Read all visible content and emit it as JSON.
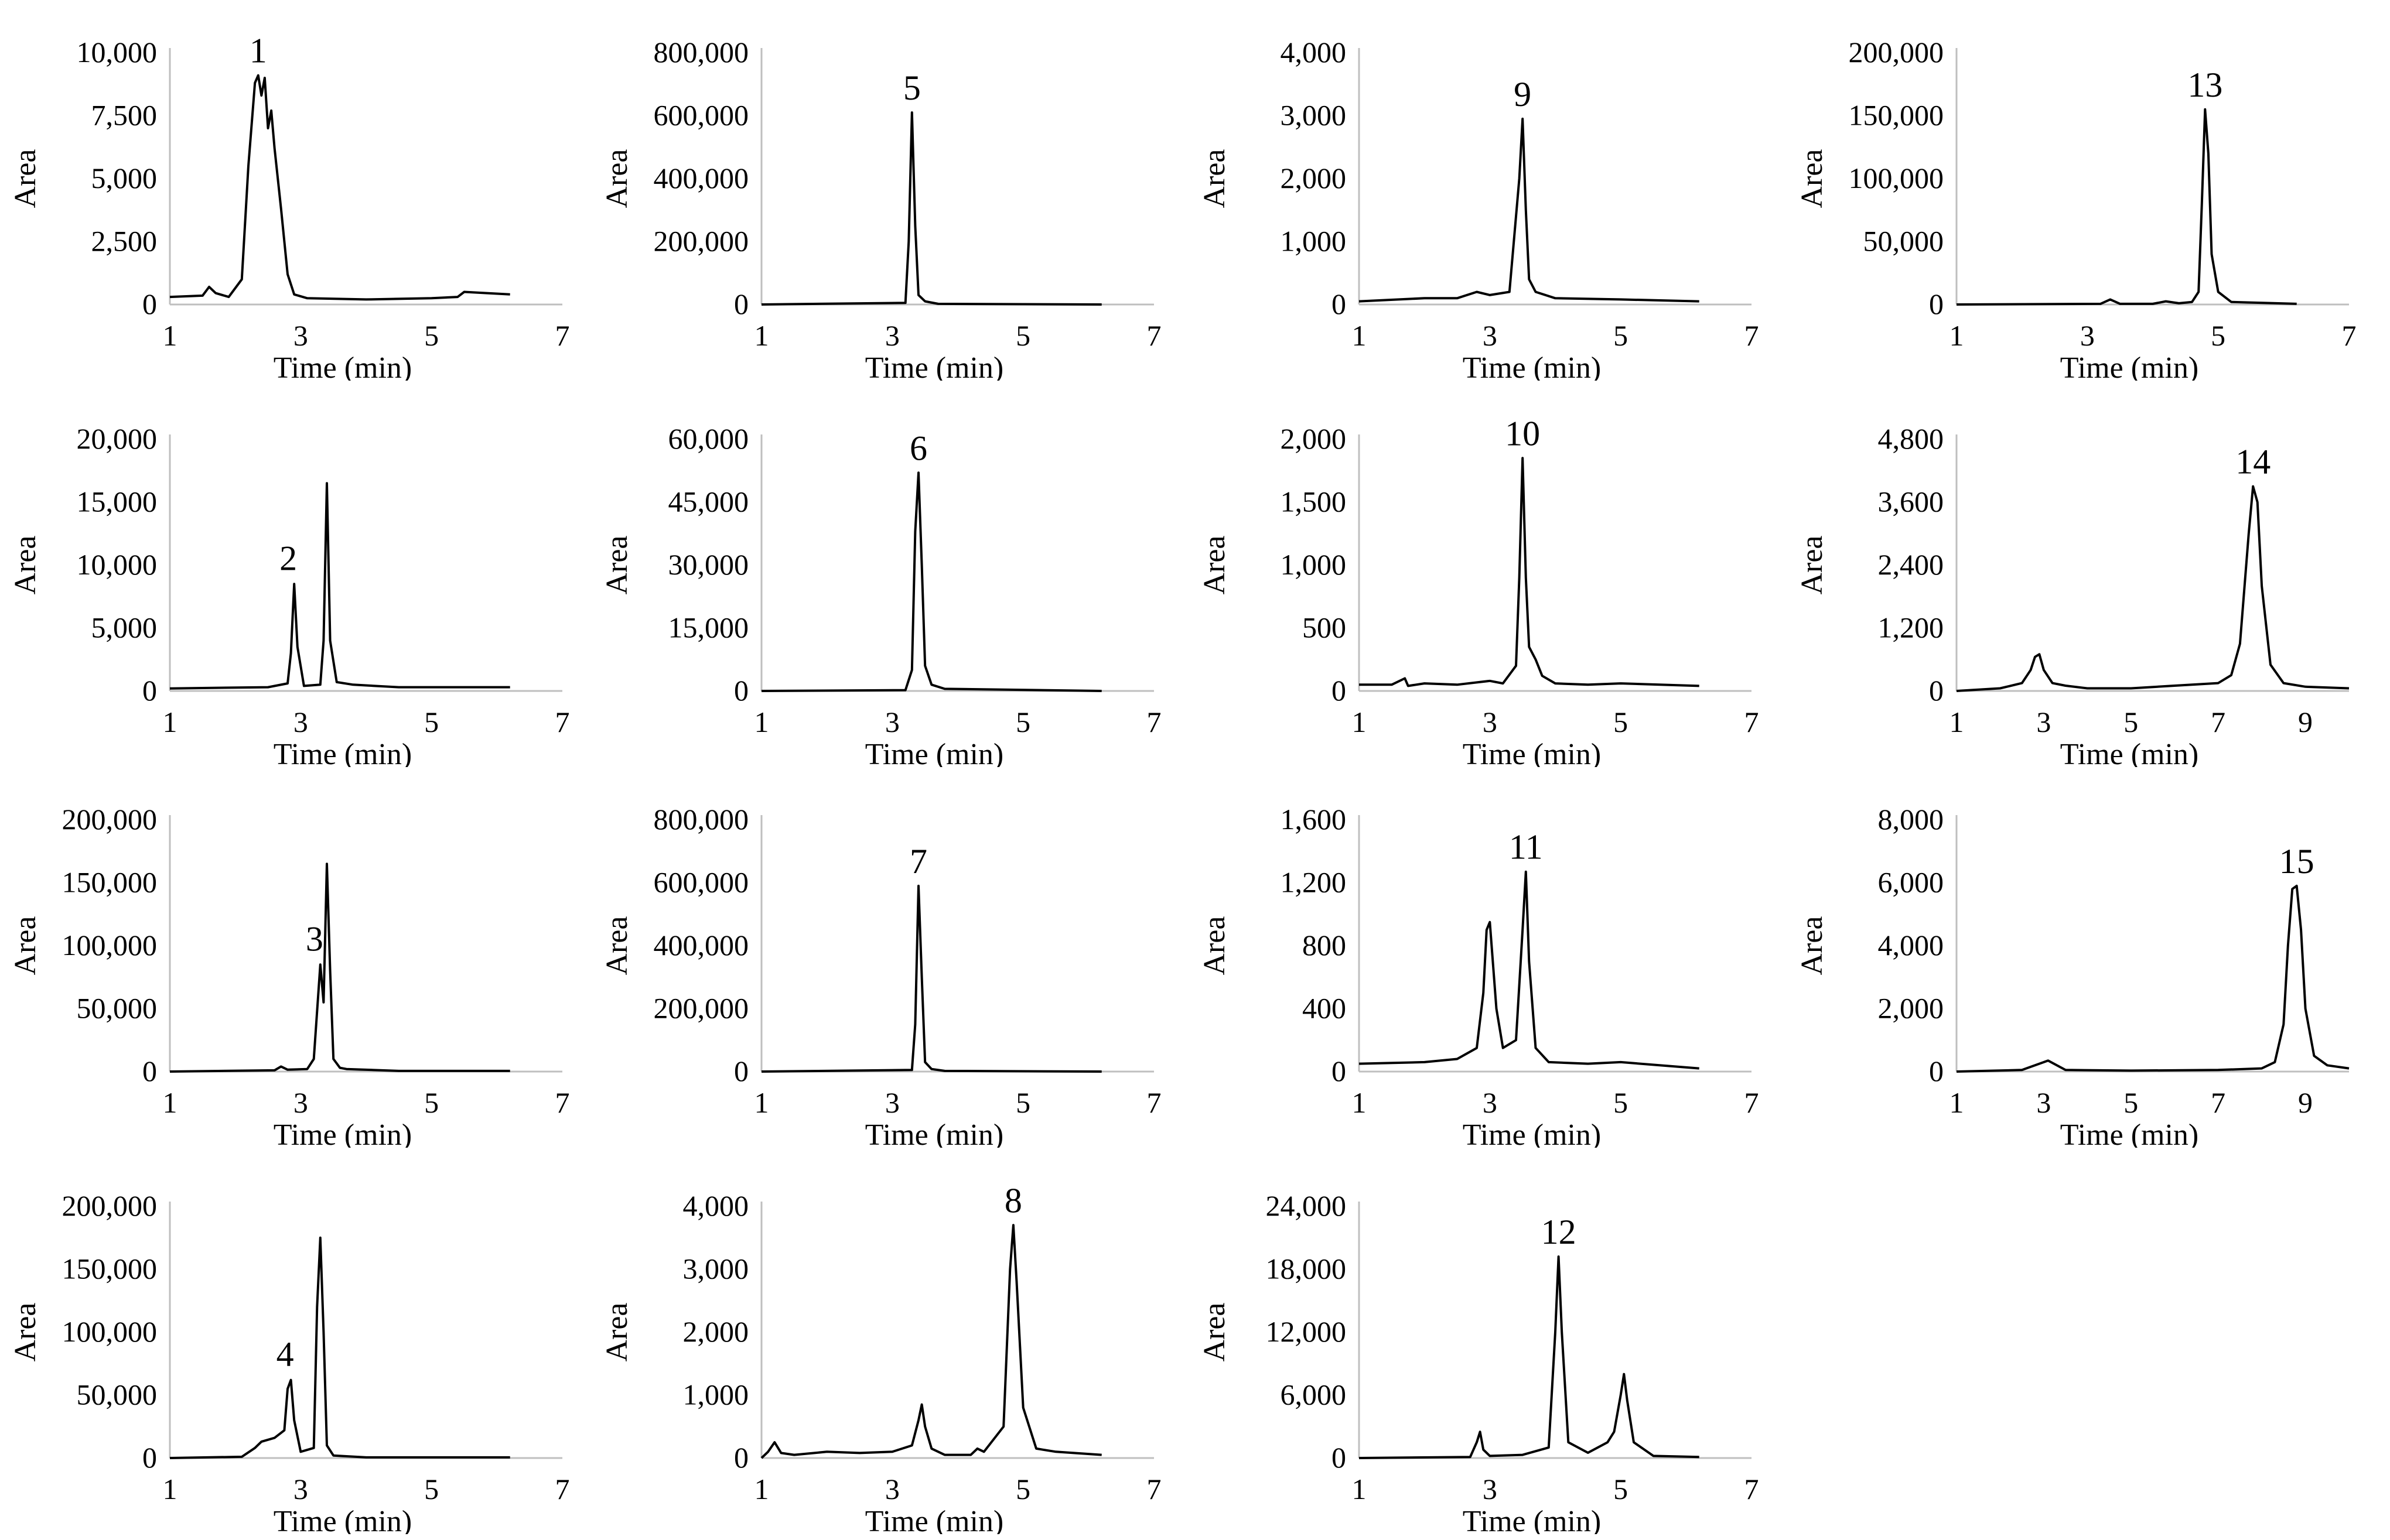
{
  "chart_data": [
    {
      "type": "line",
      "peak_label": "1",
      "xlabel": "Time (min)",
      "ylabel": "Area",
      "xlim": [
        1,
        7
      ],
      "xticks": [
        1,
        3,
        5,
        7
      ],
      "ylim": [
        0,
        10000
      ],
      "yticks": [
        0,
        2500,
        5000,
        7500,
        10000
      ],
      "ytick_labels": [
        "0",
        "2,500",
        "5,000",
        "7,500",
        "10,000"
      ],
      "series": [
        {
          "x": [
            1.0,
            1.5,
            1.6,
            1.7,
            1.9,
            2.1,
            2.2,
            2.3,
            2.35,
            2.4,
            2.45,
            2.5,
            2.55,
            2.6,
            2.7,
            2.8,
            2.9,
            3.1,
            4.0,
            5.0,
            5.4,
            5.5,
            6.2
          ],
          "y": [
            300,
            350,
            700,
            450,
            300,
            1000,
            5500,
            8800,
            9100,
            8300,
            9000,
            7000,
            7700,
            6200,
            3800,
            1200,
            400,
            250,
            200,
            250,
            300,
            500,
            400
          ]
        }
      ]
    },
    {
      "type": "line",
      "peak_label": "2",
      "xlabel": "Time (min)",
      "ylabel": "Area",
      "xlim": [
        1,
        7
      ],
      "xticks": [
        1,
        3,
        5,
        7
      ],
      "ylim": [
        0,
        20000
      ],
      "yticks": [
        0,
        5000,
        10000,
        15000,
        20000
      ],
      "ytick_labels": [
        "0",
        "5,000",
        "10,000",
        "15,000",
        "20,000"
      ],
      "series": [
        {
          "x": [
            1.0,
            2.5,
            2.8,
            2.85,
            2.9,
            2.95,
            3.05,
            3.3,
            3.35,
            3.4,
            3.45,
            3.55,
            3.8,
            4.5,
            6.2
          ],
          "y": [
            200,
            300,
            600,
            3000,
            8500,
            3500,
            400,
            500,
            4000,
            16500,
            4000,
            700,
            500,
            300,
            300
          ]
        }
      ]
    },
    {
      "type": "line",
      "peak_label": "3",
      "xlabel": "Time (min)",
      "ylabel": "Area",
      "xlim": [
        1,
        7
      ],
      "xticks": [
        1,
        3,
        5,
        7
      ],
      "ylim": [
        0,
        200000
      ],
      "yticks": [
        0,
        50000,
        100000,
        150000,
        200000
      ],
      "ytick_labels": [
        "0",
        "50,000",
        "100,000",
        "150,000",
        "200,000"
      ],
      "series": [
        {
          "x": [
            1.0,
            2.6,
            2.7,
            2.8,
            3.1,
            3.2,
            3.3,
            3.35,
            3.4,
            3.45,
            3.5,
            3.6,
            3.7,
            4.5,
            6.2
          ],
          "y": [
            0,
            1000,
            4000,
            1500,
            2000,
            10000,
            85000,
            55000,
            165000,
            80000,
            10000,
            3000,
            2000,
            500,
            500
          ]
        }
      ]
    },
    {
      "type": "line",
      "peak_label": "4",
      "xlabel": "Time (min)",
      "ylabel": "Area",
      "xlim": [
        1,
        7
      ],
      "xticks": [
        1,
        3,
        5,
        7
      ],
      "ylim": [
        0,
        200000
      ],
      "yticks": [
        0,
        50000,
        100000,
        150000,
        200000
      ],
      "ytick_labels": [
        "0",
        "50,000",
        "100,000",
        "150,000",
        "200,000"
      ],
      "series": [
        {
          "x": [
            1.0,
            2.1,
            2.3,
            2.4,
            2.6,
            2.75,
            2.8,
            2.85,
            2.9,
            3.0,
            3.2,
            3.25,
            3.3,
            3.35,
            3.4,
            3.5,
            4.0,
            6.2
          ],
          "y": [
            0,
            1000,
            8000,
            13000,
            16000,
            22000,
            55000,
            62000,
            30000,
            5000,
            8000,
            120000,
            175000,
            100000,
            10000,
            2000,
            500,
            500
          ]
        }
      ]
    },
    {
      "type": "line",
      "peak_label": "5",
      "xlabel": "Time (min)",
      "ylabel": "Area",
      "xlim": [
        1,
        7
      ],
      "xticks": [
        1,
        3,
        5,
        7
      ],
      "ylim": [
        0,
        800000
      ],
      "yticks": [
        0,
        200000,
        400000,
        600000,
        800000
      ],
      "ytick_labels": [
        "0",
        "200,000",
        "400,000",
        "600,000",
        "800,000"
      ],
      "series": [
        {
          "x": [
            1.0,
            3.2,
            3.25,
            3.3,
            3.35,
            3.4,
            3.5,
            3.7,
            6.2
          ],
          "y": [
            0,
            5000,
            200000,
            610000,
            250000,
            30000,
            10000,
            2000,
            0
          ]
        }
      ]
    },
    {
      "type": "line",
      "peak_label": "6",
      "xlabel": "Time (min)",
      "ylabel": "Area",
      "xlim": [
        1,
        7
      ],
      "xticks": [
        1,
        3,
        5,
        7
      ],
      "ylim": [
        0,
        60000
      ],
      "yticks": [
        0,
        15000,
        30000,
        45000,
        60000
      ],
      "ytick_labels": [
        "0",
        "15,000",
        "30,000",
        "45,000",
        "60,000"
      ],
      "series": [
        {
          "x": [
            1.0,
            3.2,
            3.3,
            3.35,
            3.4,
            3.45,
            3.5,
            3.6,
            3.8,
            6.2
          ],
          "y": [
            0,
            200,
            5000,
            38000,
            52000,
            30000,
            6000,
            1500,
            500,
            0
          ]
        }
      ]
    },
    {
      "type": "line",
      "peak_label": "7",
      "xlabel": "Time (min)",
      "ylabel": "Area",
      "xlim": [
        1,
        7
      ],
      "xticks": [
        1,
        3,
        5,
        7
      ],
      "ylim": [
        0,
        800000
      ],
      "yticks": [
        0,
        200000,
        400000,
        600000,
        800000
      ],
      "ytick_labels": [
        "0",
        "200,000",
        "400,000",
        "600,000",
        "800,000"
      ],
      "series": [
        {
          "x": [
            1.0,
            3.3,
            3.35,
            3.4,
            3.45,
            3.5,
            3.6,
            3.8,
            6.2
          ],
          "y": [
            0,
            5000,
            150000,
            590000,
            300000,
            30000,
            8000,
            2000,
            0
          ]
        }
      ]
    },
    {
      "type": "line",
      "peak_label": "8",
      "xlabel": "Time (min)",
      "ylabel": "Area",
      "xlim": [
        1,
        7
      ],
      "xticks": [
        1,
        3,
        5,
        7
      ],
      "ylim": [
        0,
        4000
      ],
      "yticks": [
        0,
        1000,
        2000,
        3000,
        4000
      ],
      "ytick_labels": [
        "0",
        "1,000",
        "2,000",
        "3,000",
        "4,000"
      ],
      "series": [
        {
          "x": [
            1.0,
            1.1,
            1.2,
            1.3,
            1.5,
            2.0,
            2.5,
            3.0,
            3.3,
            3.4,
            3.45,
            3.5,
            3.6,
            3.8,
            4.2,
            4.3,
            4.4,
            4.7,
            4.8,
            4.85,
            4.9,
            5.0,
            5.2,
            5.5,
            6.2
          ],
          "y": [
            0,
            100,
            250,
            80,
            50,
            100,
            80,
            100,
            200,
            600,
            850,
            500,
            150,
            50,
            50,
            150,
            100,
            500,
            3000,
            3700,
            2800,
            800,
            150,
            100,
            50
          ]
        }
      ]
    },
    {
      "type": "line",
      "peak_label": "9",
      "xlabel": "Time (min)",
      "ylabel": "Area",
      "xlim": [
        1,
        7
      ],
      "xticks": [
        1,
        3,
        5,
        7
      ],
      "ylim": [
        0,
        4000
      ],
      "yticks": [
        0,
        1000,
        2000,
        3000,
        4000
      ],
      "ytick_labels": [
        "0",
        "1,000",
        "2,000",
        "3,000",
        "4,000"
      ],
      "series": [
        {
          "x": [
            1.0,
            2.0,
            2.5,
            2.8,
            3.0,
            3.3,
            3.45,
            3.5,
            3.55,
            3.6,
            3.7,
            4.0,
            5.0,
            6.2
          ],
          "y": [
            50,
            100,
            100,
            200,
            150,
            200,
            2000,
            2950,
            1500,
            400,
            200,
            100,
            80,
            50
          ]
        }
      ]
    },
    {
      "type": "line",
      "peak_label": "10",
      "xlabel": "Time (min)",
      "ylabel": "Area",
      "xlim": [
        1,
        7
      ],
      "xticks": [
        1,
        3,
        5,
        7
      ],
      "ylim": [
        0,
        2000
      ],
      "yticks": [
        0,
        500,
        1000,
        1500,
        2000
      ],
      "ytick_labels": [
        "0",
        "500",
        "1,000",
        "1,500",
        "2,000"
      ],
      "series": [
        {
          "x": [
            1.0,
            1.5,
            1.7,
            1.75,
            2.0,
            2.5,
            3.0,
            3.2,
            3.4,
            3.45,
            3.5,
            3.55,
            3.6,
            3.7,
            3.8,
            4.0,
            4.5,
            5.0,
            6.2
          ],
          "y": [
            50,
            50,
            100,
            40,
            60,
            50,
            80,
            60,
            200,
            900,
            1850,
            900,
            350,
            250,
            120,
            60,
            50,
            60,
            40
          ]
        }
      ]
    },
    {
      "type": "line",
      "peak_label": "11",
      "xlabel": "Time (min)",
      "ylabel": "Area",
      "xlim": [
        1,
        7
      ],
      "xticks": [
        1,
        3,
        5,
        7
      ],
      "ylim": [
        0,
        1600
      ],
      "yticks": [
        0,
        400,
        800,
        1200,
        1600
      ],
      "ytick_labels": [
        "0",
        "400",
        "800",
        "1,200",
        "1,600"
      ],
      "series": [
        {
          "x": [
            1.0,
            2.0,
            2.5,
            2.8,
            2.9,
            2.95,
            3.0,
            3.1,
            3.2,
            3.4,
            3.5,
            3.55,
            3.6,
            3.7,
            3.9,
            4.5,
            5.0,
            6.2
          ],
          "y": [
            50,
            60,
            80,
            150,
            500,
            900,
            950,
            400,
            150,
            200,
            900,
            1270,
            700,
            150,
            60,
            50,
            60,
            20
          ]
        }
      ]
    },
    {
      "type": "line",
      "peak_label": "12",
      "xlabel": "Time (min)",
      "ylabel": "Area",
      "xlim": [
        1,
        7
      ],
      "xticks": [
        1,
        3,
        5,
        7
      ],
      "ylim": [
        0,
        24000
      ],
      "yticks": [
        0,
        6000,
        12000,
        18000,
        24000
      ],
      "ytick_labels": [
        "0",
        "6,000",
        "12,000",
        "18,000",
        "24,000"
      ],
      "series": [
        {
          "x": [
            1.0,
            2.7,
            2.8,
            2.85,
            2.9,
            3.0,
            3.5,
            3.9,
            4.0,
            4.05,
            4.1,
            4.2,
            4.5,
            4.8,
            4.9,
            5.0,
            5.05,
            5.1,
            5.2,
            5.5,
            6.2
          ],
          "y": [
            0,
            100,
            1500,
            2500,
            800,
            200,
            300,
            1000,
            12000,
            19200,
            12000,
            1500,
            500,
            1500,
            2500,
            6000,
            8000,
            5500,
            1500,
            200,
            100
          ]
        }
      ]
    },
    {
      "type": "line",
      "peak_label": "13",
      "xlabel": "Time (min)",
      "ylabel": "Area",
      "xlim": [
        1,
        7
      ],
      "xticks": [
        1,
        3,
        5,
        7
      ],
      "ylim": [
        0,
        200000
      ],
      "yticks": [
        0,
        50000,
        100000,
        150000,
        200000
      ],
      "ytick_labels": [
        "0",
        "50,000",
        "100,000",
        "150,000",
        "200,000"
      ],
      "series": [
        {
          "x": [
            1.0,
            3.2,
            3.35,
            3.5,
            4.0,
            4.2,
            4.4,
            4.6,
            4.7,
            4.75,
            4.8,
            4.85,
            4.9,
            5.0,
            5.2,
            6.2
          ],
          "y": [
            0,
            500,
            4000,
            500,
            500,
            2500,
            1000,
            2000,
            10000,
            80000,
            155000,
            120000,
            40000,
            10000,
            2000,
            500
          ]
        }
      ]
    },
    {
      "type": "line",
      "peak_label": "14",
      "xlabel": "Time (min)",
      "ylabel": "Area",
      "xlim": [
        1,
        10
      ],
      "xticks": [
        1,
        3,
        5,
        7,
        9
      ],
      "ylim": [
        0,
        4800
      ],
      "yticks": [
        0,
        1200,
        2400,
        3600,
        4800
      ],
      "ytick_labels": [
        "0",
        "1,200",
        "2,400",
        "3,600",
        "4,800"
      ],
      "series": [
        {
          "x": [
            1.0,
            2.0,
            2.5,
            2.7,
            2.8,
            2.9,
            3.0,
            3.2,
            3.5,
            4.0,
            5.0,
            6.0,
            7.0,
            7.3,
            7.5,
            7.7,
            7.8,
            7.9,
            8.0,
            8.2,
            8.5,
            9.0,
            10.0
          ],
          "y": [
            0,
            50,
            150,
            400,
            650,
            700,
            400,
            150,
            100,
            50,
            50,
            100,
            150,
            300,
            900,
            3000,
            3900,
            3600,
            2000,
            500,
            150,
            80,
            50
          ]
        }
      ]
    },
    {
      "type": "line",
      "peak_label": "15",
      "xlabel": "Time (min)",
      "ylabel": "Area",
      "xlim": [
        1,
        10
      ],
      "xticks": [
        1,
        3,
        5,
        7,
        9
      ],
      "ylim": [
        0,
        8000
      ],
      "yticks": [
        0,
        2000,
        4000,
        6000,
        8000
      ],
      "ytick_labels": [
        "0",
        "2,000",
        "4,000",
        "6,000",
        "8,000"
      ],
      "series": [
        {
          "x": [
            1.0,
            2.5,
            2.9,
            3.1,
            3.3,
            3.5,
            5.0,
            7.0,
            8.0,
            8.3,
            8.5,
            8.6,
            8.7,
            8.8,
            8.9,
            9.0,
            9.2,
            9.5,
            10.0
          ],
          "y": [
            0,
            50,
            250,
            350,
            200,
            50,
            30,
            50,
            100,
            300,
            1500,
            4000,
            5800,
            5900,
            4500,
            2000,
            500,
            200,
            100
          ]
        }
      ]
    }
  ]
}
